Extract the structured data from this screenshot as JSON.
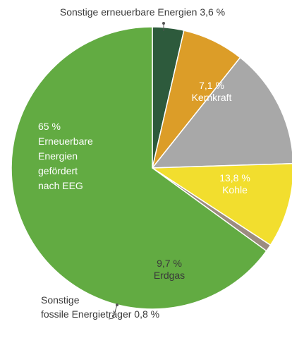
{
  "chart_data": {
    "type": "pie",
    "slices": [
      {
        "label_lines": [
          "Sonstige erneuerbare Energien 3,6 %"
        ],
        "value": 3.6,
        "color": "#2d5a3c"
      },
      {
        "label_lines": [
          "7,1 %",
          "Kernkraft"
        ],
        "value": 7.1,
        "color": "#dc9d28"
      },
      {
        "label_lines": [
          "13,8 %",
          "Kohle"
        ],
        "value": 13.8,
        "color": "#a8a8a8"
      },
      {
        "label_lines": [
          "9,7 %",
          "Erdgas"
        ],
        "value": 9.7,
        "color": "#f2de2e"
      },
      {
        "label_lines": [
          "Sonstige",
          "fossile Energieträger 0,8 %"
        ],
        "value": 0.8,
        "color": "#9c8c80"
      },
      {
        "label_lines": [
          "65 %",
          "Erneuerbare",
          "Energien",
          "gefördert",
          "nach EEG"
        ],
        "value": 65,
        "color": "#62ab42"
      }
    ]
  }
}
